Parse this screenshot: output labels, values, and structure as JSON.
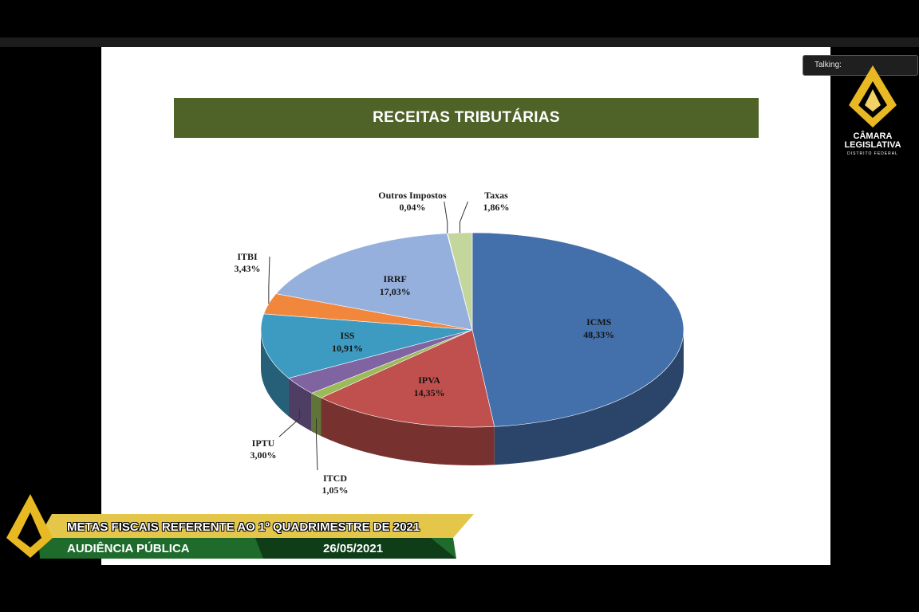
{
  "slide": {
    "title": "RECEITAS TRIBUTÁRIAS"
  },
  "overlay": {
    "talking_label": "Talking:",
    "logo_name_line1": "CÂMARA",
    "logo_name_line2": "LEGISLATIVA",
    "logo_subtitle": "DISTRITO FEDERAL",
    "banner_title": "METAS FISCAIS REFERENTE AO 1º QUADRIMESTRE DE 2021",
    "banner_subtitle": "AUDIÊNCIA PÚBLICA",
    "banner_date": "26/05/2021"
  },
  "colors": {
    "title_bar": "#4f6228",
    "banner_gold": "#e3c64a",
    "banner_green": "#1e6b2c",
    "logo_gold": "#e8b923"
  },
  "chart_data": {
    "type": "pie",
    "title": "RECEITAS TRIBUTÁRIAS",
    "unit": "%",
    "slices": [
      {
        "name": "ICMS",
        "label": "48,33%",
        "value": 48.33,
        "color": "#4370aa"
      },
      {
        "name": "IPVA",
        "label": "14,35%",
        "value": 14.35,
        "color": "#c0504d"
      },
      {
        "name": "ITCD",
        "label": "1,05%",
        "value": 1.05,
        "color": "#9bbb59"
      },
      {
        "name": "IPTU",
        "label": "3,00%",
        "value": 3.0,
        "color": "#8064a2"
      },
      {
        "name": "ISS",
        "label": "10,91%",
        "value": 10.91,
        "color": "#3d9bc1"
      },
      {
        "name": "ITBI",
        "label": "3,43%",
        "value": 3.43,
        "color": "#f0873c"
      },
      {
        "name": "IRRF",
        "label": "17,03%",
        "value": 17.03,
        "color": "#95b0dc"
      },
      {
        "name": "Outros Impostos",
        "label": "0,04%",
        "value": 0.04,
        "color": "#c4bd97"
      },
      {
        "name": "Taxas",
        "label": "1,86%",
        "value": 1.86,
        "color": "#c3d69b"
      }
    ]
  }
}
